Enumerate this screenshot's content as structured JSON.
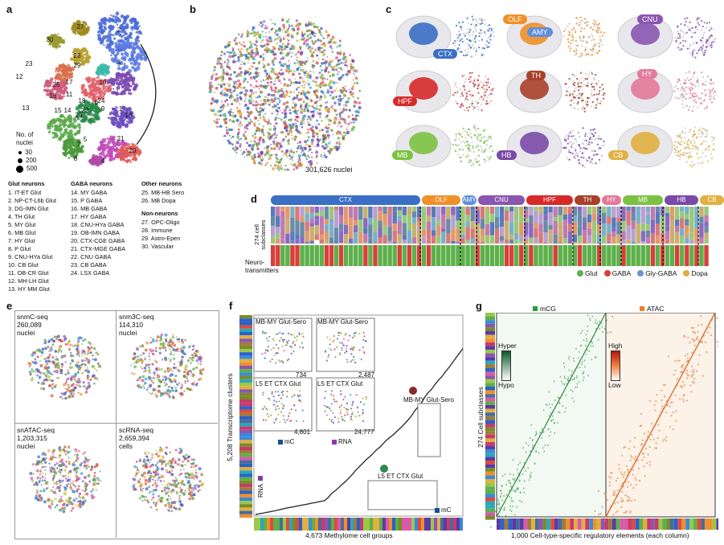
{
  "panels": {
    "a": {
      "label": "a",
      "cluster_numbers": [
        "1",
        "2",
        "3",
        "4",
        "5",
        "6",
        "7",
        "8",
        "9",
        "10",
        "11",
        "12",
        "13",
        "14",
        "15",
        "16",
        "17",
        "18",
        "19",
        "20",
        "21",
        "22",
        "23",
        "24",
        "25",
        "26",
        "27",
        "28",
        "29",
        "30"
      ],
      "size_legend": {
        "title_line1": "No. of",
        "title_line2": "nuclei",
        "values": [
          "30",
          "200",
          "500"
        ]
      },
      "legend": {
        "glut": {
          "title": "Glut neurons",
          "items": [
            "1. IT-ET Glut",
            "2. NP-CT-L6b Glut",
            "3. DG-IMN Glut",
            "4. TH Glut",
            "5. MY Glut",
            "6. MB Glut",
            "7. HY Glut",
            "8. P Glut",
            "9. CNU-HYa Glut",
            "10. CB Glut",
            "11. OB-CR Glut",
            "12. MH-LH Glut",
            "13. HY MM Glut"
          ]
        },
        "gaba": {
          "title": "GABA neurons",
          "items": [
            "14. MY GABA",
            "15. P GABA",
            "16. MB GABA",
            "17. HY GABA",
            "18. CNU-HYa GABA",
            "19. OB-IMN GABA",
            "20. CTX-CGE GABA",
            "21. CTX-MGE GABA",
            "22. CNU GABA",
            "23. CB GABA",
            "24. LSX GABA"
          ]
        },
        "other": {
          "title": "Other neurons",
          "items": [
            "25. MB-HB Sero",
            "26. MB Dopa"
          ]
        },
        "non": {
          "title": "Non-neurons",
          "items": [
            "27. OPC-Oligo",
            "28. Immune",
            "29. Astro-Epen",
            "30. Vascular"
          ]
        }
      }
    },
    "b": {
      "label": "b",
      "caption": "301,626 nuclei"
    },
    "c": {
      "label": "c",
      "regions": [
        "CTX",
        "OLF",
        "AMY",
        "CNU",
        "HPF",
        "TH",
        "HY",
        "MB",
        "HB",
        "CB"
      ]
    },
    "d": {
      "label": "d",
      "regions": [
        {
          "name": "CTX",
          "color": "#3a6fc4"
        },
        {
          "name": "OLF",
          "color": "#f0902a"
        },
        {
          "name": "AMY",
          "color": "#5f8fd8"
        },
        {
          "name": "CNU",
          "color": "#8a56b0"
        },
        {
          "name": "HPF",
          "color": "#d62a2a"
        },
        {
          "name": "TH",
          "color": "#a8402a"
        },
        {
          "name": "HY",
          "color": "#e27a9a"
        },
        {
          "name": "MB",
          "color": "#7cc242"
        },
        {
          "name": "HB",
          "color": "#7a4aa8"
        },
        {
          "name": "CB",
          "color": "#e0b040"
        }
      ],
      "ylabel_line1": "274 cell",
      "ylabel_line2": "subclasses",
      "nt_label_line1": "Neuro-",
      "nt_label_line2": "transmitters",
      "nt_legend": [
        {
          "name": "Glut",
          "color": "#5db04a"
        },
        {
          "name": "GABA",
          "color": "#d8403a"
        },
        {
          "name": "Gly-GABA",
          "color": "#7090d0"
        },
        {
          "name": "Dopa",
          "color": "#d8b040"
        }
      ]
    },
    "e": {
      "label": "e",
      "maps": [
        {
          "line1": "snmC-seq",
          "line2": "260,089",
          "line3": "nuclei"
        },
        {
          "line1": "snm3C-seq",
          "line2": "114,310",
          "line3": "nuclei"
        },
        {
          "line1": "snATAC-seq",
          "line2": "1,203,315",
          "line3": "nuclei"
        },
        {
          "line1": "scRNA-seq",
          "line2": "2,659,394",
          "line3": "cells"
        }
      ]
    },
    "f": {
      "label": "f",
      "ylabel": "5,208 Transcriptome clusters",
      "xlabel": "4,673 Methylome cell groups",
      "insets": [
        {
          "title": "MB-MY Glut-Sero",
          "count": "734"
        },
        {
          "title": "MB-MY Glut-Sero",
          "count": "2,487"
        },
        {
          "title": "L5 ET CTX Glut",
          "count": "4,801"
        },
        {
          "title": "L5 ET CTX Glut",
          "count": "24,777"
        }
      ],
      "mc_label": "mC",
      "rna_label": "RNA",
      "callout1": "MB-MY Glut-Sero",
      "callout2": "L5 ET CTX Glut",
      "rna_axis_label": "RNA",
      "mc_axis_label": "mC"
    },
    "g": {
      "label": "g",
      "mcg_label": "mCG",
      "atac_label": "ATAC",
      "ylabel": "274 Cell subclasses",
      "xlabel": "1,000 Cell-type-specific regulatory elements (each column)",
      "mcg_scale": {
        "top": "Hyper",
        "bottom": "Hypo"
      },
      "atac_scale": {
        "top": "High",
        "bottom": "Low"
      }
    }
  }
}
